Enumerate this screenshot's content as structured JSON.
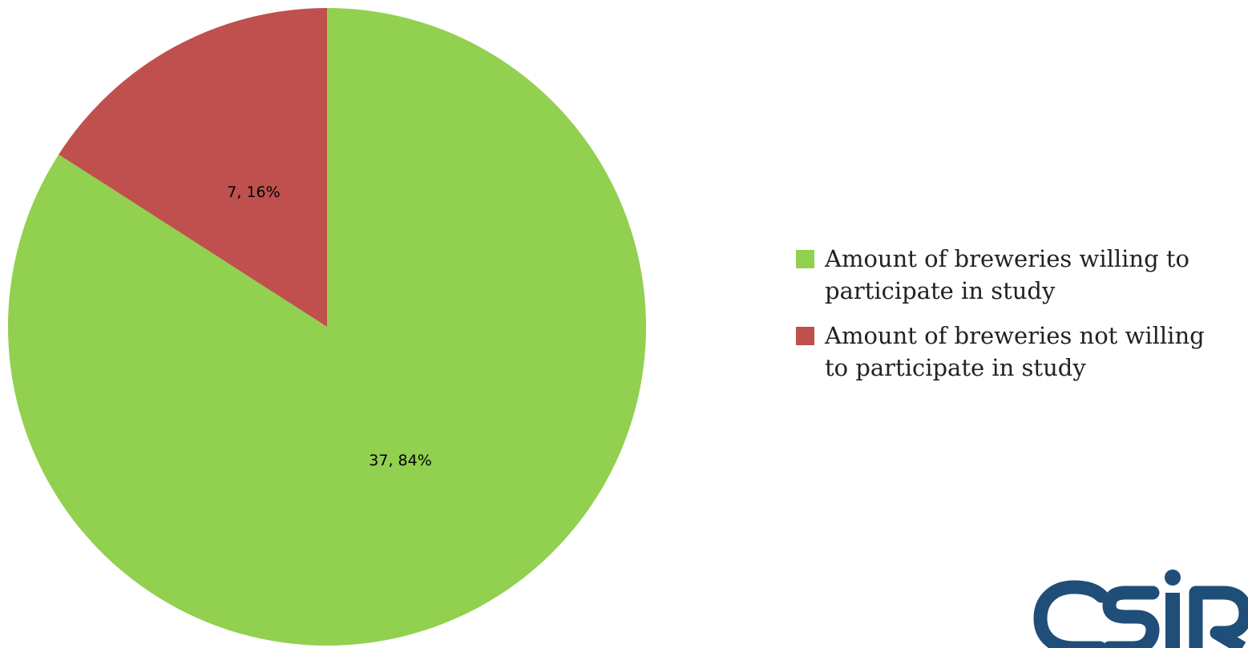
{
  "chart_data": {
    "type": "pie",
    "title": "",
    "series": [
      {
        "values": [
          37,
          7
        ],
        "percent_labels": [
          "84%",
          "16%"
        ],
        "data_labels": [
          "37, 84%",
          "7, 16%"
        ],
        "colors": [
          "#92d050",
          "#c0504d"
        ]
      }
    ],
    "categories": [
      "Amount of breweries willing to participate in study",
      "Amount of breweries not willing to participate in study"
    ],
    "start_angle_deg": 0,
    "direction": "clockwise",
    "legend_position": "right"
  },
  "legend": {
    "items": [
      {
        "label": "Amount of breweries willing to participate in study",
        "color": "#92d050"
      },
      {
        "label": "Amount of breweries not willing to participate in study",
        "color": "#c0504d"
      }
    ]
  },
  "logo": {
    "text": "csir",
    "color": "#1f4e79"
  }
}
